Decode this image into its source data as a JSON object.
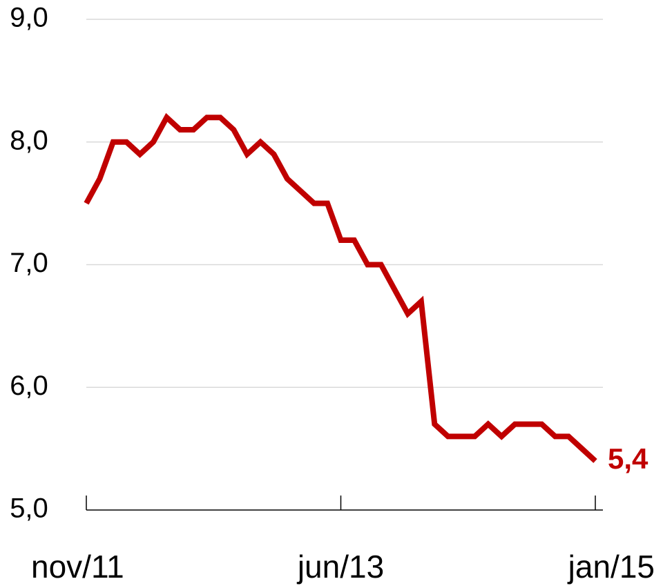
{
  "chart_data": {
    "type": "line",
    "categories": [
      "nov/11",
      null,
      null,
      null,
      null,
      null,
      null,
      null,
      null,
      null,
      null,
      null,
      null,
      null,
      null,
      null,
      null,
      null,
      null,
      "jun/13",
      null,
      null,
      null,
      null,
      null,
      null,
      null,
      null,
      null,
      null,
      null,
      null,
      null,
      null,
      null,
      null,
      null,
      null,
      "jan/15"
    ],
    "series": [
      {
        "color": "#c00000",
        "values": [
          7.5,
          7.7,
          8.0,
          8.0,
          7.9,
          8.0,
          8.2,
          8.1,
          8.1,
          8.2,
          8.2,
          8.1,
          7.9,
          8.0,
          7.9,
          7.7,
          7.6,
          7.5,
          7.5,
          7.2,
          7.2,
          7.0,
          7.0,
          6.8,
          6.6,
          6.7,
          5.7,
          5.6,
          5.6,
          5.6,
          5.7,
          5.6,
          5.7,
          5.7,
          5.7,
          5.6,
          5.6,
          5.5,
          5.4
        ],
        "value_labels": [
          null,
          null,
          null,
          null,
          null,
          null,
          null,
          null,
          null,
          null,
          null,
          null,
          null,
          null,
          null,
          null,
          null,
          null,
          null,
          null,
          null,
          null,
          null,
          null,
          null,
          null,
          null,
          null,
          null,
          null,
          null,
          null,
          null,
          null,
          null,
          null,
          null,
          null,
          "5,4"
        ]
      }
    ],
    "ylim": [
      5,
      9
    ],
    "yticks": [
      {
        "value": 5,
        "label": "5,0"
      },
      {
        "value": 6,
        "label": "6,0"
      },
      {
        "value": 7,
        "label": "7,0"
      },
      {
        "value": 8,
        "label": "8,0"
      },
      {
        "value": 9,
        "label": "9,0"
      }
    ],
    "grid": true
  }
}
